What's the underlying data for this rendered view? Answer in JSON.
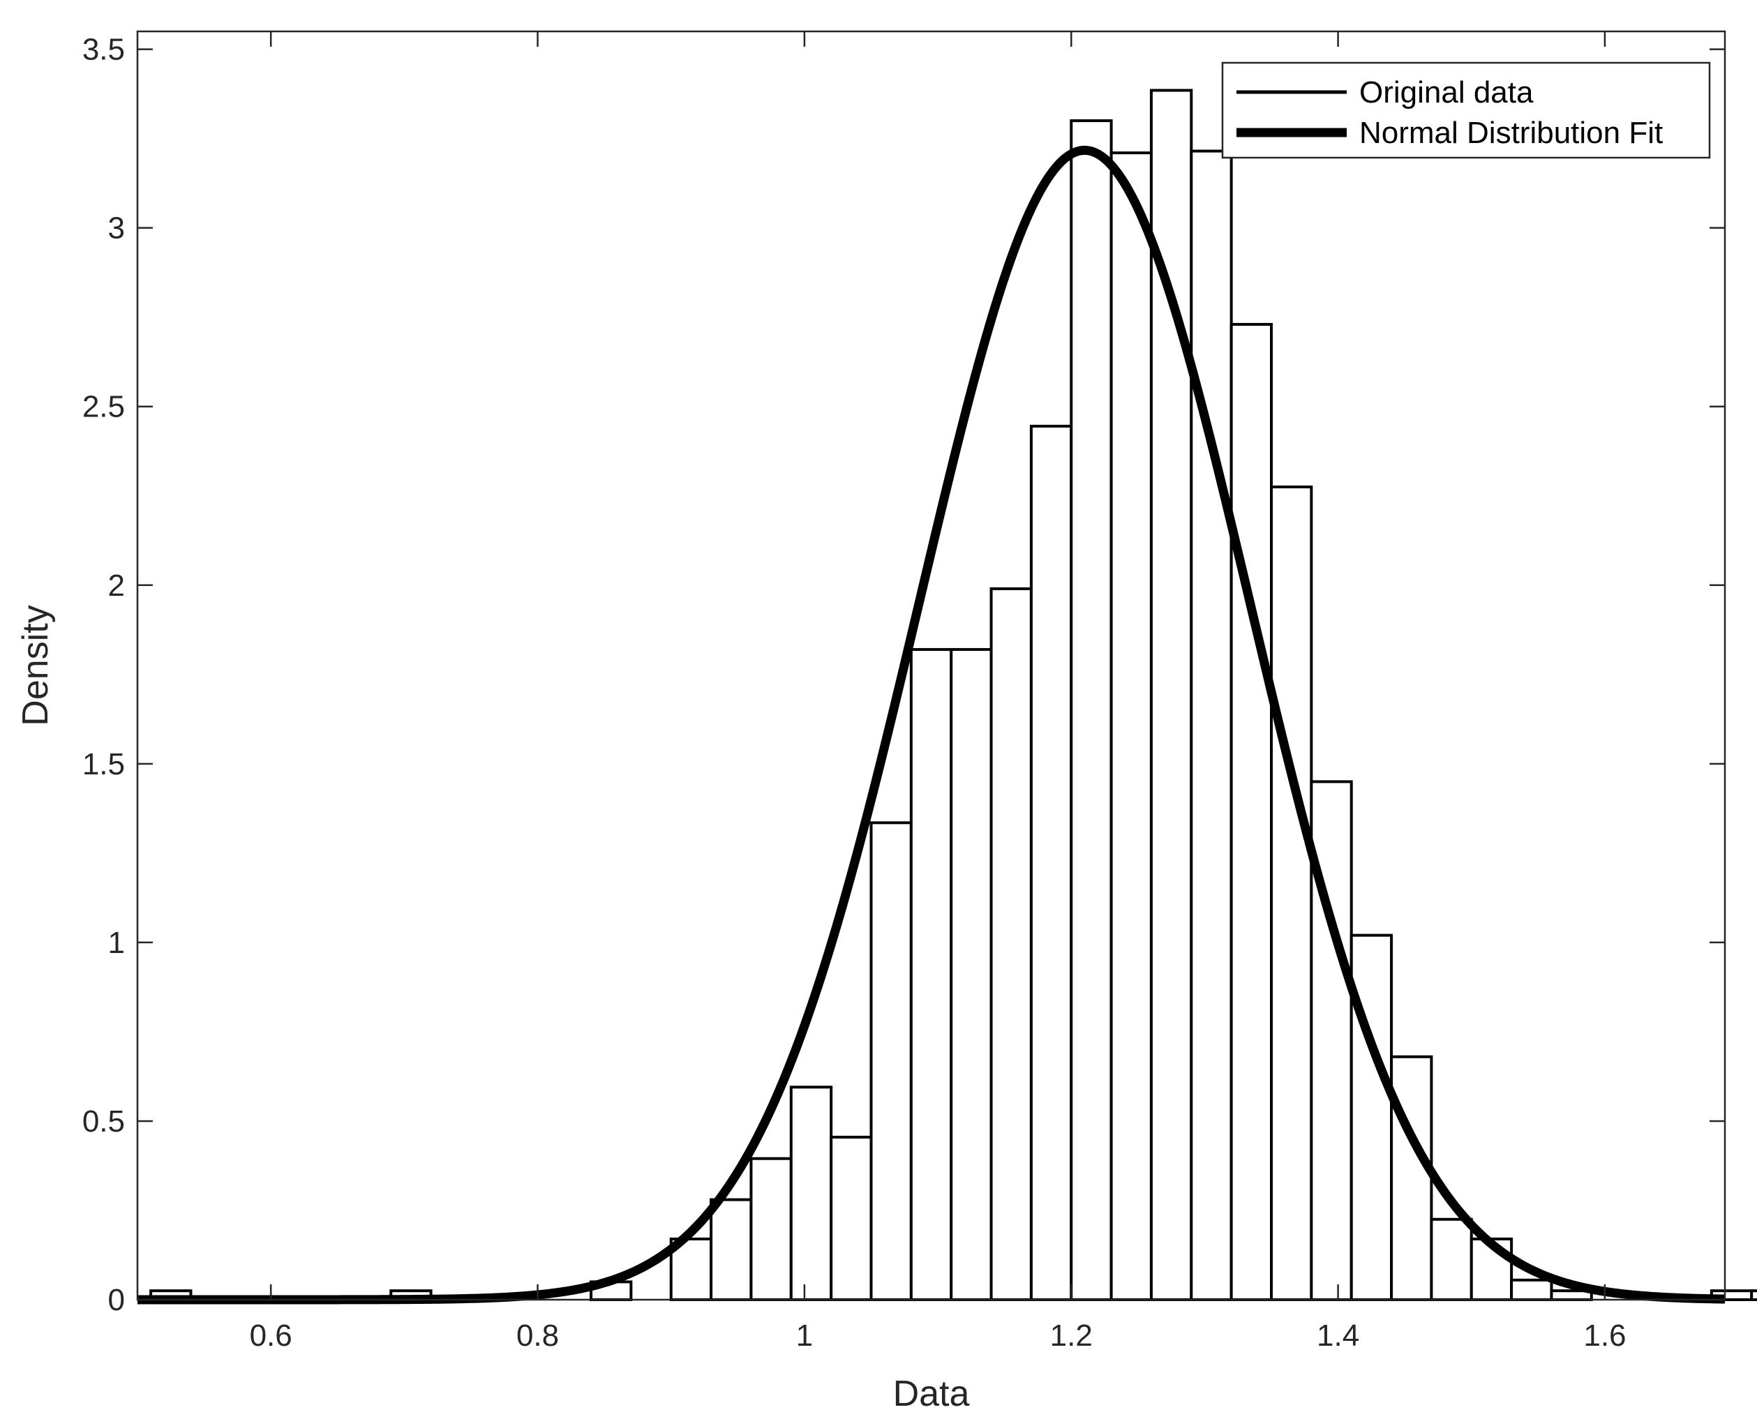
{
  "chart_data": {
    "type": "bar",
    "xlabel": "Data",
    "ylabel": "Density",
    "xlim": [
      0.5,
      1.69
    ],
    "ylim": [
      0,
      3.55
    ],
    "xticks": [
      0.6,
      0.8,
      1,
      1.2,
      1.4,
      1.6
    ],
    "yticks": [
      0,
      0.5,
      1,
      1.5,
      2,
      2.5,
      3,
      3.5
    ],
    "xtick_labels": [
      "0.6",
      "0.8",
      "1",
      "1.2",
      "1.4",
      "1.6"
    ],
    "ytick_labels": [
      "0",
      "0.5",
      "1",
      "1.5",
      "2",
      "2.5",
      "3",
      "3.5"
    ],
    "grid": false,
    "legend_position": "top-right",
    "legend": [
      "Original data",
      "Normal Distribution Fit"
    ],
    "histogram": {
      "name": "Original data",
      "bin_width": 0.03,
      "bin_edges_start": 0.51,
      "values": [
        0.025,
        0,
        0,
        0,
        0,
        0,
        0.025,
        0,
        0,
        0,
        0,
        0.05,
        0,
        0.17,
        0.28,
        0.395,
        0.595,
        0.455,
        1.335,
        1.82,
        1.82,
        1.99,
        2.445,
        3.3,
        3.21,
        3.385,
        3.215,
        2.73,
        2.275,
        1.45,
        1.02,
        0.68,
        0.225,
        0.17,
        0.055,
        0.025,
        0,
        0,
        0,
        0.025,
        0.025
      ]
    },
    "normal_fit": {
      "name": "Normal Distribution Fit",
      "mean": 1.21,
      "sigma": 0.124
    },
    "colors": {
      "bar_fill": "#ffffff",
      "bar_edge": "#000000",
      "fit_line": "#000000",
      "axes": "#262626"
    }
  }
}
